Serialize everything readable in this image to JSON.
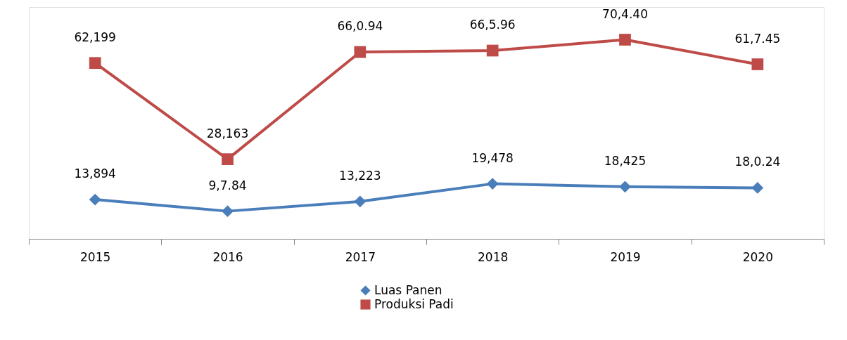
{
  "chart_data": {
    "type": "line",
    "categories": [
      "2015",
      "2016",
      "2017",
      "2018",
      "2019",
      "2020"
    ],
    "series": [
      {
        "name": "Luas Panen",
        "color": "#4a7ebb",
        "marker": "diamond",
        "values": [
          13894,
          9784,
          13223,
          19478,
          18425,
          18024
        ],
        "value_labels": [
          "13,894",
          "9,7.84",
          "13,223",
          "19,478",
          "18,425",
          "18,0.24"
        ]
      },
      {
        "name": "Produksi Padi",
        "color": "#be4b48",
        "marker": "square",
        "values": [
          62199,
          28163,
          66094,
          66596,
          70440,
          61745
        ],
        "value_labels": [
          "62,199",
          "28,163",
          "66,0.94",
          "66,5.96",
          "70,4.40",
          "61,7.45"
        ]
      }
    ],
    "ylim": [
      0,
      82000
    ],
    "tick_labels": "x",
    "grid": false,
    "legend": "bottom"
  }
}
